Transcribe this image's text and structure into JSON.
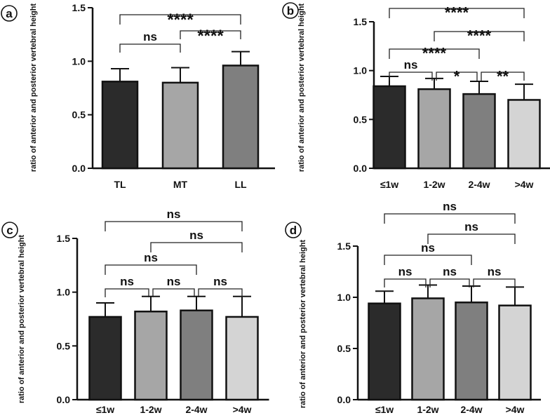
{
  "chart_data": [
    {
      "panel": "a",
      "type": "bar",
      "categories": [
        "TL",
        "MT",
        "LL"
      ],
      "values": [
        0.81,
        0.8,
        0.96
      ],
      "errors": [
        0.12,
        0.14,
        0.13
      ],
      "colors": [
        "#2b2b2b",
        "#a6a6a6",
        "#7f7f7f"
      ],
      "ylabel": "ratio of anterior and posterior vertebral height",
      "ylim": [
        0,
        1.5
      ],
      "yticks": [
        "0.0",
        "0.5",
        "1.0",
        "1.5"
      ],
      "comparisons": [
        {
          "from": 0,
          "to": 1,
          "label": "ns"
        },
        {
          "from": 1,
          "to": 2,
          "label": "****"
        },
        {
          "from": 0,
          "to": 2,
          "label": "****"
        }
      ]
    },
    {
      "panel": "b",
      "type": "bar",
      "categories": [
        "≤1w",
        "1-2w",
        "2-4w",
        ">4w"
      ],
      "values": [
        0.84,
        0.81,
        0.76,
        0.7
      ],
      "errors": [
        0.1,
        0.11,
        0.13,
        0.16
      ],
      "colors": [
        "#2b2b2b",
        "#a6a6a6",
        "#7f7f7f",
        "#d4d4d4"
      ],
      "ylabel": "ratio of anterior and posterior vertebral height",
      "ylim": [
        0,
        1.5
      ],
      "yticks": [
        "0.0",
        "0.5",
        "1.0",
        "1.5"
      ],
      "comparisons": [
        {
          "from": 0,
          "to": 1,
          "label": "ns"
        },
        {
          "from": 1,
          "to": 2,
          "label": "*"
        },
        {
          "from": 2,
          "to": 3,
          "label": "**"
        },
        {
          "from": 0,
          "to": 2,
          "label": "****"
        },
        {
          "from": 1,
          "to": 3,
          "label": "****"
        },
        {
          "from": 0,
          "to": 3,
          "label": "****"
        }
      ]
    },
    {
      "panel": "c",
      "type": "bar",
      "categories": [
        "≤1w",
        "1-2w",
        "2-4w",
        ">4w"
      ],
      "values": [
        0.77,
        0.82,
        0.83,
        0.77
      ],
      "errors": [
        0.13,
        0.14,
        0.13,
        0.19
      ],
      "colors": [
        "#2b2b2b",
        "#a6a6a6",
        "#7f7f7f",
        "#d4d4d4"
      ],
      "ylabel": "ratio of anterior and posterior vertebral height",
      "ylim": [
        0,
        1.5
      ],
      "yticks": [
        "0.0",
        "0.5",
        "1.0",
        "1.5"
      ],
      "comparisons": [
        {
          "from": 0,
          "to": 1,
          "label": "ns"
        },
        {
          "from": 1,
          "to": 2,
          "label": "ns"
        },
        {
          "from": 2,
          "to": 3,
          "label": "ns"
        },
        {
          "from": 0,
          "to": 2,
          "label": "ns"
        },
        {
          "from": 1,
          "to": 3,
          "label": "ns"
        },
        {
          "from": 0,
          "to": 3,
          "label": "ns"
        }
      ]
    },
    {
      "panel": "d",
      "type": "bar",
      "categories": [
        "≤1w",
        "1-2w",
        "2-4w",
        ">4w"
      ],
      "values": [
        0.94,
        0.99,
        0.95,
        0.92
      ],
      "errors": [
        0.12,
        0.13,
        0.16,
        0.18
      ],
      "colors": [
        "#2b2b2b",
        "#a6a6a6",
        "#7f7f7f",
        "#d4d4d4"
      ],
      "ylabel": "ratio of anterior and posterior vertebral height",
      "ylim": [
        0,
        1.5
      ],
      "yticks": [
        "0.0",
        "0.5",
        "1.0",
        "1.5"
      ],
      "comparisons": [
        {
          "from": 0,
          "to": 1,
          "label": "ns"
        },
        {
          "from": 1,
          "to": 2,
          "label": "ns"
        },
        {
          "from": 2,
          "to": 3,
          "label": "ns"
        },
        {
          "from": 0,
          "to": 2,
          "label": "ns"
        },
        {
          "from": 1,
          "to": 3,
          "label": "ns"
        },
        {
          "from": 0,
          "to": 3,
          "label": "ns"
        }
      ]
    }
  ]
}
